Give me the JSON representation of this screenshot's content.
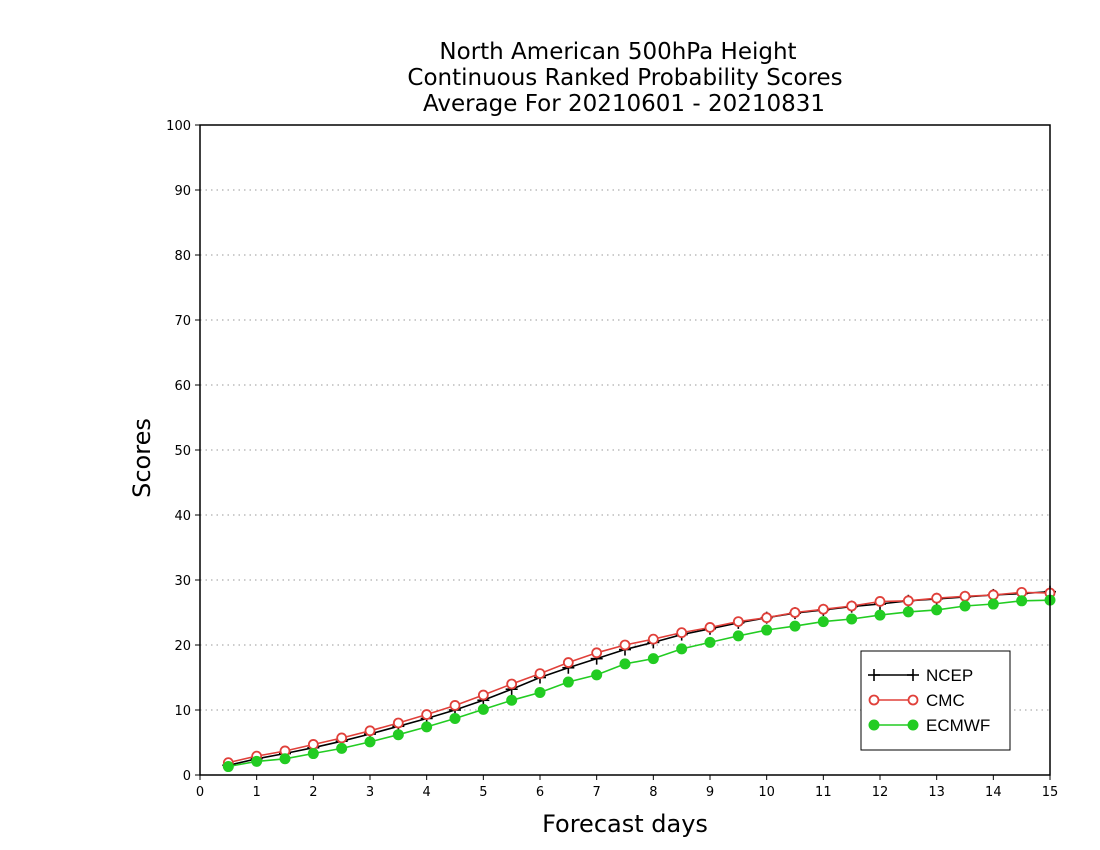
{
  "chart_data": {
    "type": "line",
    "title": [
      "North American 500hPa Height",
      "Continuous Ranked Probability Scores",
      "Average For 20210601 - 20210831"
    ],
    "xlabel": "Forecast days",
    "ylabel": "Scores",
    "xlim": [
      0,
      15
    ],
    "ylim": [
      0,
      100
    ],
    "xticks": [
      0,
      1,
      2,
      3,
      4,
      5,
      6,
      7,
      8,
      9,
      10,
      11,
      12,
      13,
      14,
      15
    ],
    "yticks": [
      0,
      10,
      20,
      30,
      40,
      50,
      60,
      70,
      80,
      90,
      100
    ],
    "grid": "horizontal-dotted",
    "legend_position": "bottom-right",
    "x": [
      0.5,
      1,
      1.5,
      2,
      2.5,
      3,
      3.5,
      4,
      4.5,
      5,
      5.5,
      6,
      6.5,
      7,
      7.5,
      8,
      8.5,
      9,
      9.5,
      10,
      10.5,
      11,
      11.5,
      12,
      12.5,
      13,
      13.5,
      14,
      14.5,
      15
    ],
    "series": [
      {
        "name": "NCEP",
        "color": "#000000",
        "marker": "plus",
        "values": [
          1.5,
          2.5,
          3.3,
          4.2,
          5.2,
          6.3,
          7.5,
          8.7,
          10.0,
          11.5,
          13.2,
          15.0,
          16.5,
          17.9,
          19.3,
          20.4,
          21.6,
          22.5,
          23.4,
          24.2,
          24.9,
          25.4,
          25.9,
          26.3,
          26.8,
          27.1,
          27.4,
          27.7,
          27.9,
          28.2
        ]
      },
      {
        "name": "CMC",
        "color": "#e0403a",
        "marker": "open-circle",
        "values": [
          1.9,
          2.9,
          3.7,
          4.7,
          5.7,
          6.8,
          8.0,
          9.3,
          10.7,
          12.3,
          14.0,
          15.6,
          17.3,
          18.8,
          20.0,
          20.9,
          21.9,
          22.7,
          23.6,
          24.2,
          25.0,
          25.5,
          26.0,
          26.7,
          26.8,
          27.2,
          27.5,
          27.7,
          28.1,
          28.0
        ]
      },
      {
        "name": "ECMWF",
        "color": "#22cc22",
        "marker": "filled-circle",
        "values": [
          1.3,
          2.1,
          2.5,
          3.3,
          4.1,
          5.1,
          6.2,
          7.4,
          8.7,
          10.1,
          11.5,
          12.7,
          14.3,
          15.4,
          17.1,
          17.9,
          19.4,
          20.4,
          21.4,
          22.3,
          22.9,
          23.6,
          24.0,
          24.6,
          25.1,
          25.4,
          26.0,
          26.3,
          26.8,
          26.9
        ]
      }
    ]
  }
}
